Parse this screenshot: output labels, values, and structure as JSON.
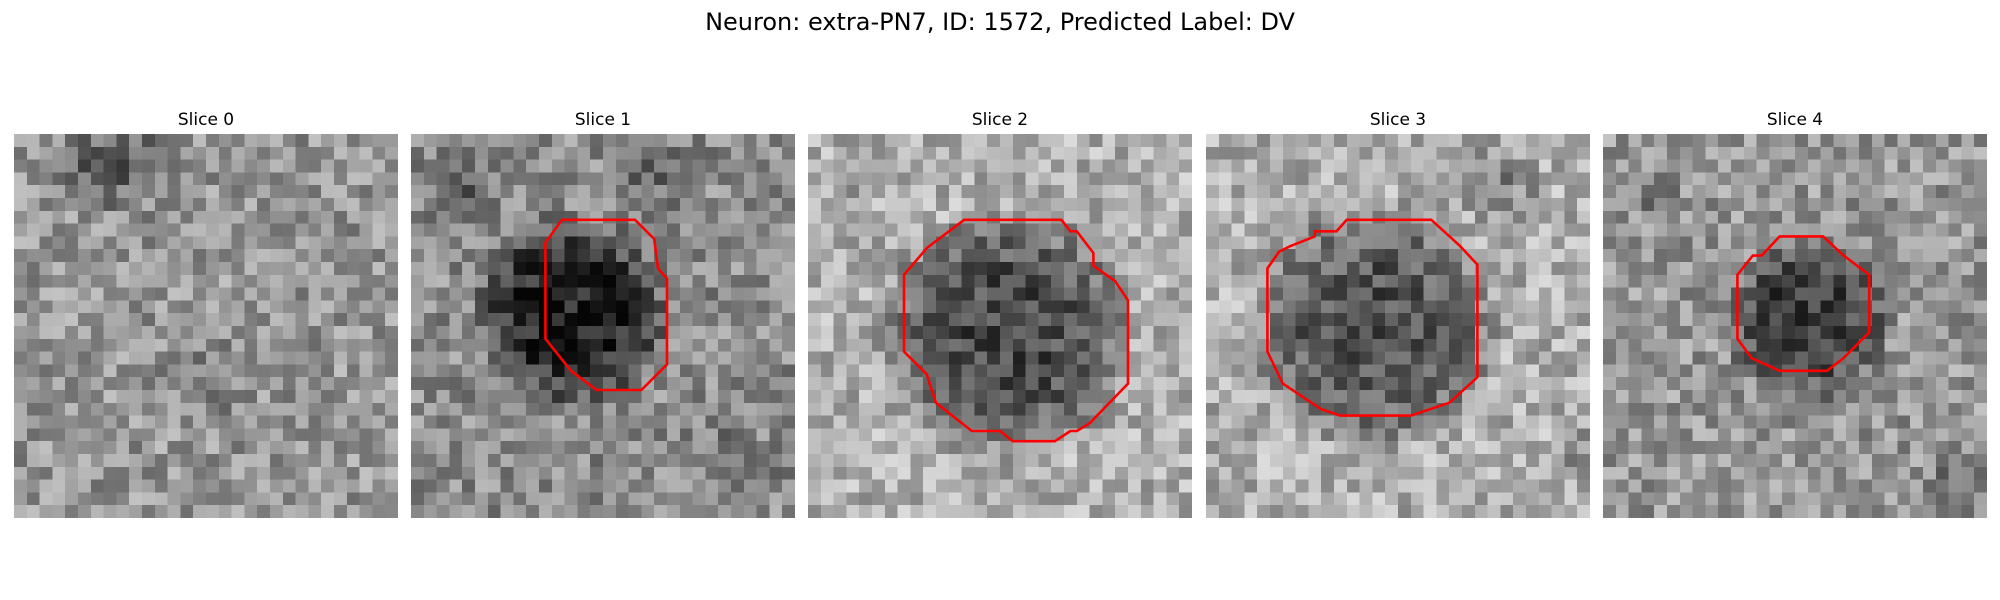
{
  "figure": {
    "title": "Neuron: extra-PN7, ID: 1572, Predicted Label: DV"
  },
  "colors": {
    "contour": "#ff0000",
    "colormap": "grayscale"
  },
  "slices": [
    {
      "title": "Slice 0",
      "has_contour": false
    },
    {
      "title": "Slice 1",
      "has_contour": true
    },
    {
      "title": "Slice 2",
      "has_contour": true
    },
    {
      "title": "Slice 3",
      "has_contour": true
    },
    {
      "title": "Slice 4",
      "has_contour": true
    }
  ]
}
